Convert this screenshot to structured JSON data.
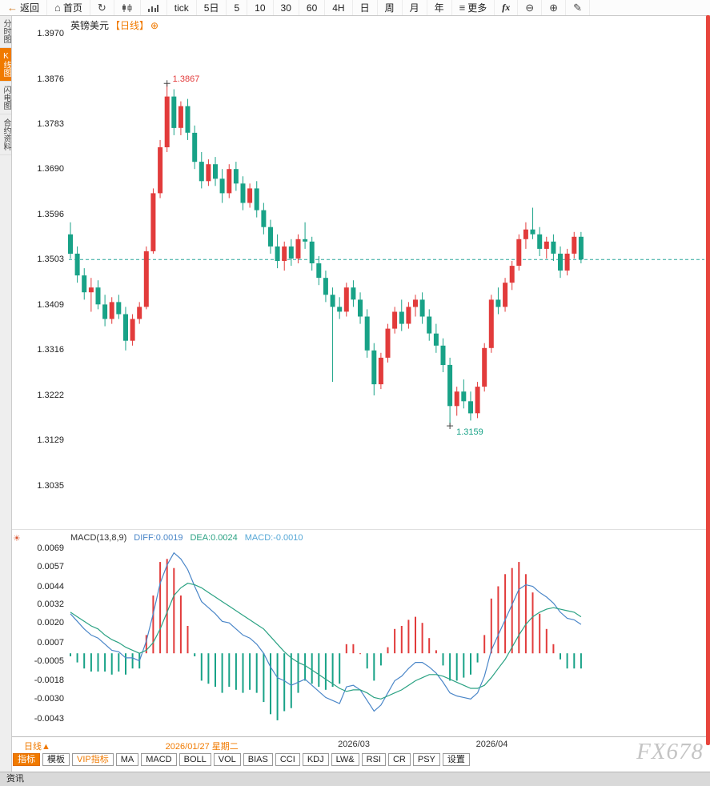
{
  "colors": {
    "up": "#e23b3b",
    "down": "#18a287",
    "accent": "#f07a00",
    "diff_line": "#4a86c8",
    "dea_line": "#2ba283",
    "macd_value": "#55a7d6",
    "dashed_line": "#2aa79b",
    "scrollbar": "#e8453c"
  },
  "toolbar": {
    "items": [
      {
        "name": "back-button",
        "icon": "back-icon",
        "glyph": "←",
        "label": "返回"
      },
      {
        "name": "home-button",
        "icon": "home-icon",
        "glyph": "⌂",
        "label": "首页"
      },
      {
        "name": "refresh-button",
        "icon": "refresh-icon",
        "glyph": "↻",
        "label": ""
      },
      {
        "name": "kline-chart-button",
        "icon": "kline-icon",
        "svg": "kline",
        "label": ""
      },
      {
        "name": "volume-chart-button",
        "icon": "volume-icon",
        "svg": "volume",
        "label": ""
      },
      {
        "name": "period-tick-button",
        "label": "tick"
      },
      {
        "name": "period-5d-button",
        "label": "5日"
      },
      {
        "name": "period-5-button",
        "label": "5"
      },
      {
        "name": "period-10-button",
        "label": "10"
      },
      {
        "name": "period-30-button",
        "label": "30"
      },
      {
        "name": "period-60-button",
        "label": "60"
      },
      {
        "name": "period-4h-button",
        "label": "4H"
      },
      {
        "name": "period-day-button",
        "label": "日"
      },
      {
        "name": "period-week-button",
        "label": "周"
      },
      {
        "name": "period-month-button",
        "label": "月"
      },
      {
        "name": "period-year-button",
        "label": "年"
      },
      {
        "name": "more-button",
        "icon": "menu-icon",
        "glyph": "≡",
        "label": "更多"
      },
      {
        "name": "fx-button",
        "label": "fx"
      },
      {
        "name": "zoom-out-button",
        "icon": "zoom-out-icon",
        "glyph": "⊖",
        "label": ""
      },
      {
        "name": "zoom-in-button",
        "icon": "zoom-in-icon",
        "glyph": "⊕",
        "label": ""
      },
      {
        "name": "draw-button",
        "icon": "pencil-icon",
        "glyph": "✎",
        "label": ""
      }
    ]
  },
  "sidebar": {
    "items": [
      {
        "name": "tab-time-chart",
        "label": "分时图",
        "active": false
      },
      {
        "name": "tab-kline-chart",
        "label": "K线图",
        "active": true
      },
      {
        "name": "tab-lightning-chart",
        "label": "闪电图",
        "active": false
      },
      {
        "name": "tab-contract-info",
        "label": "合约资料",
        "active": false
      }
    ]
  },
  "chart": {
    "title": "英镑美元",
    "period_tag": "【日线】",
    "add_icon_glyph": "⊕"
  },
  "macd_panel": {
    "title": "MACD(13,8,9)",
    "diff": "DIFF:0.0019",
    "dea": "DEA:0.0024",
    "macd": "MACD:-0.0010",
    "settings_icon_glyph": "☀"
  },
  "bottom": {
    "period": "日线",
    "period_arrow": "▲",
    "tabs": [
      {
        "name": "tab-indicator",
        "label": "指标",
        "state": "active"
      },
      {
        "name": "tab-template",
        "label": "模板",
        "state": "normal"
      },
      {
        "name": "tab-vip-indicator",
        "label": "VIP指标",
        "state": "vip"
      },
      {
        "name": "tab-ma",
        "label": "MA",
        "state": "normal"
      },
      {
        "name": "tab-macd",
        "label": "MACD",
        "state": "normal"
      },
      {
        "name": "tab-boll",
        "label": "BOLL",
        "state": "normal"
      },
      {
        "name": "tab-vol",
        "label": "VOL",
        "state": "normal"
      },
      {
        "name": "tab-bias",
        "label": "BIAS",
        "state": "normal"
      },
      {
        "name": "tab-cci",
        "label": "CCI",
        "state": "normal"
      },
      {
        "name": "tab-kdj",
        "label": "KDJ",
        "state": "normal"
      },
      {
        "name": "tab-lwr",
        "label": "LW&",
        "state": "normal"
      },
      {
        "name": "tab-rsi",
        "label": "RSI",
        "state": "normal"
      },
      {
        "name": "tab-cr",
        "label": "CR",
        "state": "normal"
      },
      {
        "name": "tab-psy",
        "label": "PSY",
        "state": "normal"
      },
      {
        "name": "tab-settings",
        "label": "设置",
        "state": "normal"
      }
    ],
    "watermark": "FX678",
    "footer": "资讯"
  },
  "chart_data": {
    "type": "candlestick",
    "title": "英镑美元 日线",
    "price_ticks": [
      1.397,
      1.3876,
      1.3783,
      1.369,
      1.3596,
      1.3503,
      1.3409,
      1.3316,
      1.3222,
      1.3129,
      1.3035
    ],
    "current_price": 1.3503,
    "high_annotation": {
      "index": 15,
      "price": 1.3867,
      "label": "1.3867"
    },
    "low_annotation": {
      "index": 56,
      "price": 1.3159,
      "label": "1.3159"
    },
    "x_labels": [
      {
        "index": 15,
        "text": "2026/01/27 星期二",
        "highlight": true
      },
      {
        "index": 40,
        "text": "2026/03",
        "highlight": false
      },
      {
        "index": 60,
        "text": "2026/04",
        "highlight": false
      }
    ],
    "candles_ohlc": [
      [
        1.3555,
        1.358,
        1.3505,
        1.3515
      ],
      [
        1.3515,
        1.353,
        1.3455,
        1.347
      ],
      [
        1.347,
        1.3485,
        1.342,
        1.3435
      ],
      [
        1.3435,
        1.3465,
        1.3395,
        1.3445
      ],
      [
        1.3445,
        1.346,
        1.34,
        1.341
      ],
      [
        1.341,
        1.343,
        1.3365,
        1.338
      ],
      [
        1.338,
        1.3425,
        1.337,
        1.3415
      ],
      [
        1.3415,
        1.343,
        1.338,
        1.339
      ],
      [
        1.339,
        1.3405,
        1.3315,
        1.3335
      ],
      [
        1.3335,
        1.339,
        1.3325,
        1.338
      ],
      [
        1.338,
        1.3415,
        1.337,
        1.3405
      ],
      [
        1.3405,
        1.353,
        1.34,
        1.352
      ],
      [
        1.352,
        1.365,
        1.3515,
        1.364
      ],
      [
        1.364,
        1.375,
        1.363,
        1.3735
      ],
      [
        1.3735,
        1.3867,
        1.3725,
        1.384
      ],
      [
        1.384,
        1.3855,
        1.376,
        1.3775
      ],
      [
        1.3775,
        1.383,
        1.376,
        1.382
      ],
      [
        1.382,
        1.3835,
        1.375,
        1.3765
      ],
      [
        1.3765,
        1.378,
        1.369,
        1.3705
      ],
      [
        1.3705,
        1.3725,
        1.365,
        1.3665
      ],
      [
        1.3665,
        1.371,
        1.3655,
        1.37
      ],
      [
        1.37,
        1.3715,
        1.3655,
        1.367
      ],
      [
        1.367,
        1.369,
        1.362,
        1.364
      ],
      [
        1.364,
        1.37,
        1.363,
        1.369
      ],
      [
        1.369,
        1.3705,
        1.3645,
        1.366
      ],
      [
        1.366,
        1.3675,
        1.3605,
        1.362
      ],
      [
        1.362,
        1.366,
        1.361,
        1.365
      ],
      [
        1.365,
        1.3665,
        1.359,
        1.3605
      ],
      [
        1.3605,
        1.362,
        1.3555,
        1.357
      ],
      [
        1.357,
        1.3585,
        1.3515,
        1.353
      ],
      [
        1.353,
        1.3555,
        1.3485,
        1.35
      ],
      [
        1.35,
        1.354,
        1.348,
        1.353
      ],
      [
        1.353,
        1.3545,
        1.349,
        1.3505
      ],
      [
        1.3505,
        1.3555,
        1.3495,
        1.3545
      ],
      [
        1.3545,
        1.358,
        1.3525,
        1.354
      ],
      [
        1.354,
        1.355,
        1.348,
        1.3495
      ],
      [
        1.3495,
        1.351,
        1.345,
        1.3465
      ],
      [
        1.3465,
        1.348,
        1.3415,
        1.343
      ],
      [
        1.343,
        1.3445,
        1.325,
        1.3405
      ],
      [
        1.3405,
        1.3425,
        1.338,
        1.3395
      ],
      [
        1.3395,
        1.3455,
        1.3385,
        1.3445
      ],
      [
        1.3445,
        1.346,
        1.3405,
        1.342
      ],
      [
        1.342,
        1.3435,
        1.337,
        1.3385
      ],
      [
        1.3385,
        1.34,
        1.33,
        1.3315
      ],
      [
        1.3315,
        1.333,
        1.3222,
        1.3245
      ],
      [
        1.3245,
        1.331,
        1.3235,
        1.33
      ],
      [
        1.33,
        1.337,
        1.329,
        1.336
      ],
      [
        1.336,
        1.3405,
        1.335,
        1.3395
      ],
      [
        1.3395,
        1.342,
        1.3355,
        1.337
      ],
      [
        1.337,
        1.3415,
        1.336,
        1.3405
      ],
      [
        1.3405,
        1.343,
        1.3385,
        1.342
      ],
      [
        1.342,
        1.3435,
        1.337,
        1.3385
      ],
      [
        1.3385,
        1.34,
        1.3335,
        1.335
      ],
      [
        1.335,
        1.337,
        1.331,
        1.3325
      ],
      [
        1.3325,
        1.334,
        1.327,
        1.3285
      ],
      [
        1.3285,
        1.33,
        1.3159,
        1.32
      ],
      [
        1.32,
        1.324,
        1.318,
        1.323
      ],
      [
        1.323,
        1.3255,
        1.3195,
        1.321
      ],
      [
        1.321,
        1.323,
        1.317,
        1.3185
      ],
      [
        1.3185,
        1.325,
        1.3175,
        1.324
      ],
      [
        1.324,
        1.333,
        1.323,
        1.332
      ],
      [
        1.332,
        1.343,
        1.331,
        1.342
      ],
      [
        1.342,
        1.3445,
        1.339,
        1.3405
      ],
      [
        1.3405,
        1.3465,
        1.3395,
        1.3455
      ],
      [
        1.3455,
        1.35,
        1.344,
        1.349
      ],
      [
        1.349,
        1.3555,
        1.348,
        1.3545
      ],
      [
        1.3545,
        1.358,
        1.3525,
        1.3565
      ],
      [
        1.3565,
        1.361,
        1.3545,
        1.3555
      ],
      [
        1.3555,
        1.357,
        1.351,
        1.3525
      ],
      [
        1.3525,
        1.355,
        1.3505,
        1.354
      ],
      [
        1.354,
        1.3555,
        1.35,
        1.3515
      ],
      [
        1.3515,
        1.353,
        1.3465,
        1.348
      ],
      [
        1.348,
        1.3525,
        1.347,
        1.3515
      ],
      [
        1.3515,
        1.356,
        1.3505,
        1.355
      ],
      [
        1.355,
        1.356,
        1.3495,
        1.3503
      ]
    ],
    "macd": {
      "params": "13,8,9",
      "ticks": [
        0.0069,
        0.0057,
        0.0044,
        0.0032,
        0.002,
        0.0007,
        -0.0005,
        -0.0018,
        -0.003,
        -0.0043
      ],
      "diff": [
        0.0026,
        0.0021,
        0.0016,
        0.0012,
        0.001,
        0.0006,
        0.0002,
        0.0001,
        -0.0003,
        -0.0003,
        -0.0005,
        0.0008,
        0.0026,
        0.0046,
        0.0058,
        0.0066,
        0.0062,
        0.0055,
        0.0044,
        0.0034,
        0.003,
        0.0026,
        0.0021,
        0.002,
        0.0016,
        0.0012,
        0.001,
        0.0006,
        0.0,
        -0.0009,
        -0.0016,
        -0.0018,
        -0.0021,
        -0.0019,
        -0.0017,
        -0.0021,
        -0.0025,
        -0.0029,
        -0.0031,
        -0.0033,
        -0.0022,
        -0.0021,
        -0.0024,
        -0.0031,
        -0.0038,
        -0.0034,
        -0.0026,
        -0.0018,
        -0.0015,
        -0.001,
        -0.0006,
        -0.0006,
        -0.0009,
        -0.0013,
        -0.0019,
        -0.0026,
        -0.0028,
        -0.0029,
        -0.003,
        -0.0026,
        -0.0015,
        0.0002,
        0.0012,
        0.0022,
        0.0032,
        0.0042,
        0.0045,
        0.0044,
        0.004,
        0.0037,
        0.0033,
        0.0027,
        0.0023,
        0.0022,
        0.0019
      ],
      "dea": [
        0.0027,
        0.0024,
        0.0021,
        0.0018,
        0.0016,
        0.0012,
        0.0009,
        0.0007,
        0.0004,
        0.0002,
        0.0,
        0.0002,
        0.0007,
        0.0016,
        0.0027,
        0.0038,
        0.0043,
        0.0046,
        0.0045,
        0.0043,
        0.004,
        0.0037,
        0.0034,
        0.0031,
        0.0028,
        0.0025,
        0.0022,
        0.0019,
        0.0016,
        0.0011,
        0.0006,
        0.0001,
        -0.0003,
        -0.0006,
        -0.0008,
        -0.0011,
        -0.0014,
        -0.0017,
        -0.002,
        -0.0023,
        -0.0025,
        -0.0024,
        -0.0024,
        -0.0026,
        -0.0029,
        -0.003,
        -0.0028,
        -0.0026,
        -0.0024,
        -0.0021,
        -0.0018,
        -0.0016,
        -0.0014,
        -0.0014,
        -0.0015,
        -0.0017,
        -0.0019,
        -0.0021,
        -0.0023,
        -0.0023,
        -0.0021,
        -0.0016,
        -0.001,
        -0.0004,
        0.0004,
        0.0012,
        0.0019,
        0.0024,
        0.0027,
        0.0029,
        0.003,
        0.0029,
        0.0028,
        0.0027,
        0.0024
      ],
      "diff_last": 0.0019,
      "dea_last": 0.0024,
      "macd_last": -0.001
    }
  }
}
